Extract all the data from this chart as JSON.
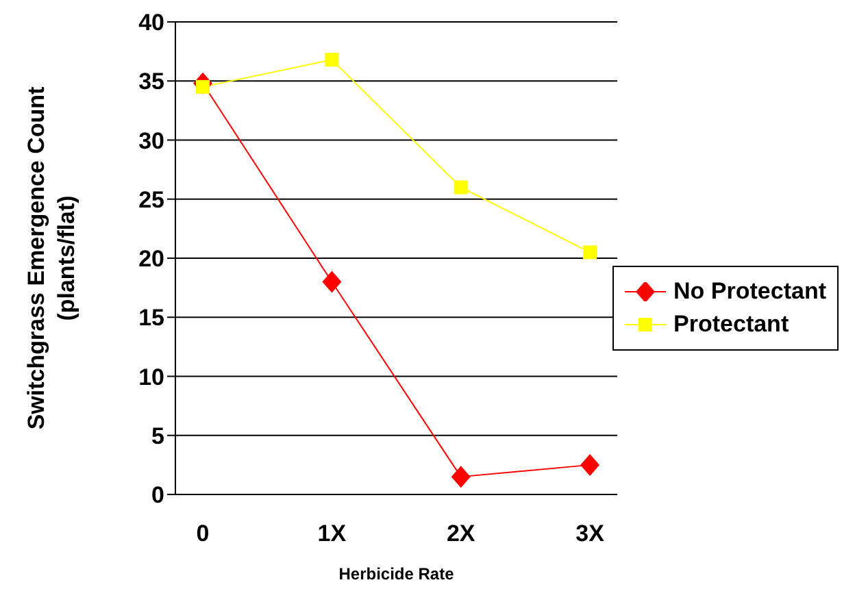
{
  "chart_data": {
    "type": "line",
    "xlabel": "Herbicide Rate",
    "ylabel": "Switchgrass Emergence Count\n(plants/flat)",
    "categories": [
      "0",
      "1X",
      "2X",
      "3X"
    ],
    "series": [
      {
        "name": "No Protectant",
        "color": "#ff0000",
        "marker": "diamond",
        "values": [
          34.8,
          18,
          1.5,
          2.5
        ]
      },
      {
        "name": "Protectant",
        "color": "#ffff00",
        "marker": "square",
        "values": [
          34.5,
          36.8,
          26,
          20.5
        ]
      }
    ],
    "ylim": [
      0,
      40
    ],
    "yticks": [
      0,
      5,
      10,
      15,
      20,
      25,
      30,
      35,
      40
    ],
    "grid": "y",
    "legend": "right"
  }
}
